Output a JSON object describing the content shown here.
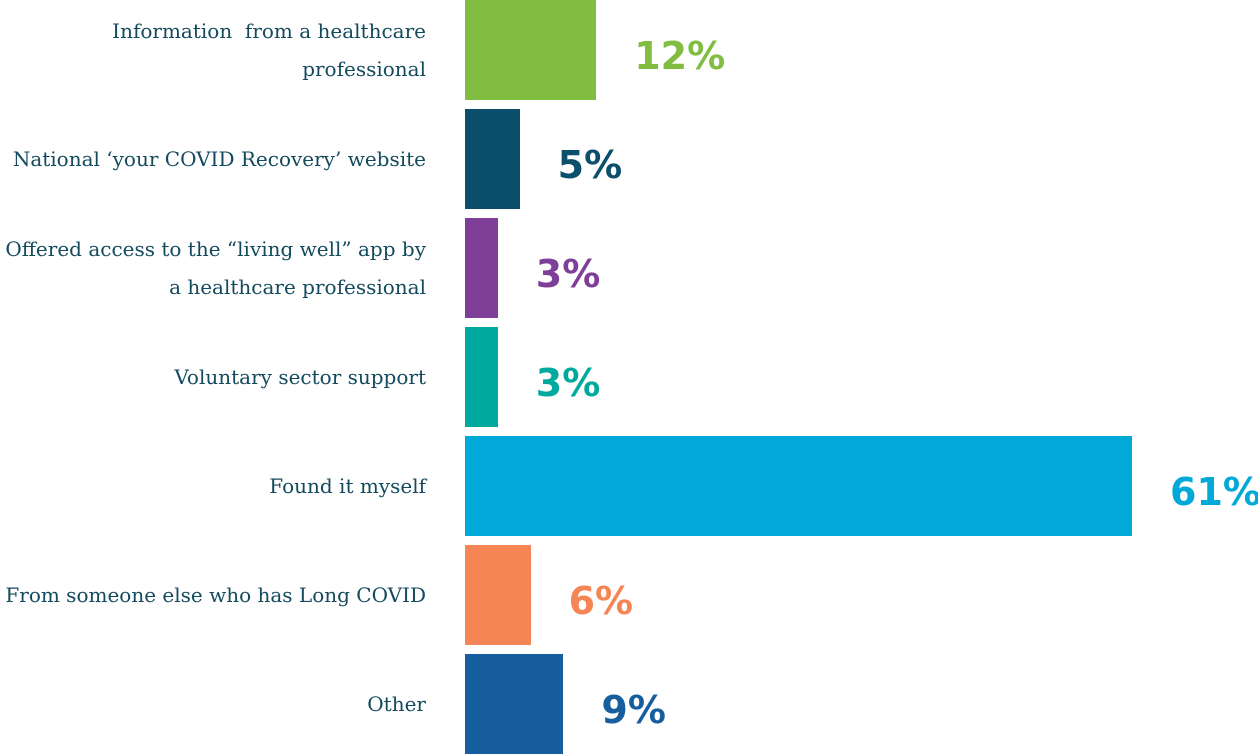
{
  "chart_data": {
    "type": "bar",
    "orientation": "horizontal",
    "categories": [
      "Information  from a healthcare professional",
      "National ‘your COVID Recovery’ website",
      "Offered access to the “living well” app by a healthcare professional",
      "Voluntary sector support",
      "Found it myself",
      "From someone else who has Long COVID",
      "Other"
    ],
    "values": [
      12,
      5,
      3,
      3,
      61,
      6,
      9
    ],
    "value_labels": [
      "12%",
      "5%",
      "3%",
      "3%",
      "61%",
      "6%",
      "9%"
    ],
    "colors": [
      "#80bd41",
      "#0b4f6c",
      "#7f3f98",
      "#00a99d",
      "#00a9d8",
      "#f58554",
      "#175e9e"
    ]
  }
}
